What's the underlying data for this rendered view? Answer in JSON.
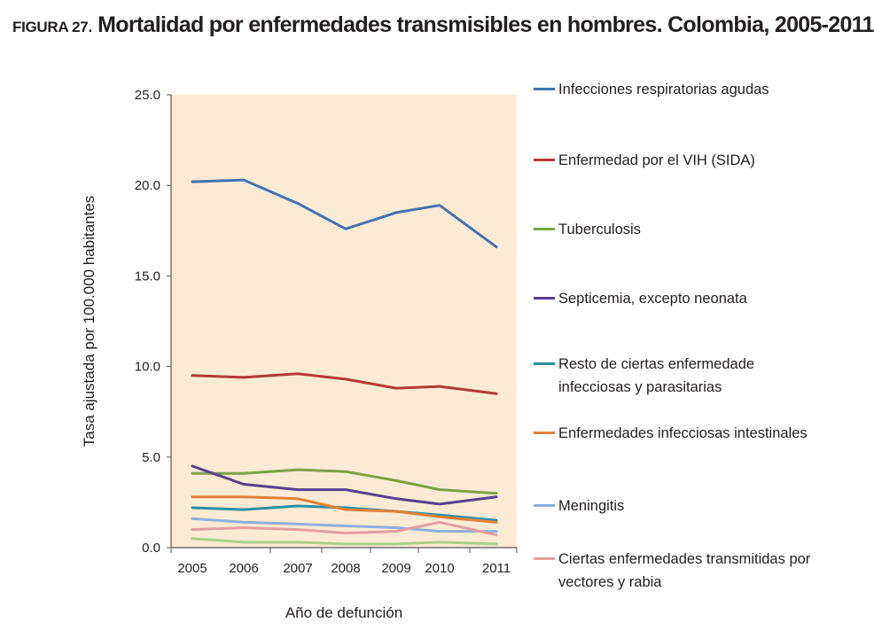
{
  "figure_label": "FIGURA 27.",
  "figure_title": "Mortalidad por enfermedades transmisibles en hombres. Colombia, 2005-2011",
  "chart_data": {
    "type": "line",
    "title": "Mortalidad por enfermedades transmisibles en hombres. Colombia, 2005-2011",
    "xlabel": "Año de defunción",
    "ylabel": "Tasa ajustada por 100.000 habitantes",
    "categories": [
      "2005",
      "2006",
      "2007",
      "2008",
      "2009",
      "2010",
      "2011"
    ],
    "ylim": [
      0,
      25
    ],
    "yticks": [
      "0.0",
      "5.0",
      "10.0",
      "15.0",
      "20.0",
      "25.0"
    ],
    "grid": false,
    "legend_position": "right",
    "plot_background": "#fcebd4",
    "series": [
      {
        "name": "Infecciones respiratorias agudas",
        "color": "#4472b0",
        "values": [
          20.2,
          20.3,
          19.0,
          17.6,
          18.5,
          18.9,
          16.6
        ]
      },
      {
        "name": "Enfermedad por el VIH (SIDA)",
        "color": "#b23a3a",
        "values": [
          9.5,
          9.4,
          9.6,
          9.3,
          8.8,
          8.9,
          8.5
        ]
      },
      {
        "name": "Tuberculosis",
        "color": "#7aa346",
        "values": [
          4.1,
          4.1,
          4.3,
          4.2,
          3.7,
          3.2,
          3.0
        ]
      },
      {
        "name": "Septicemia, excepto neonata",
        "color": "#5b3f8c",
        "values": [
          4.5,
          3.5,
          3.2,
          3.2,
          2.7,
          2.4,
          2.8
        ]
      },
      {
        "name": "Resto de ciertas enfermedade infecciosas y parasitarias",
        "color": "#2a8fa6",
        "values": [
          2.2,
          2.1,
          2.3,
          2.2,
          2.0,
          1.8,
          1.5
        ]
      },
      {
        "name": "Enfermedades infecciosas intestinales",
        "color": "#e0823a",
        "values": [
          2.8,
          2.8,
          2.7,
          2.1,
          2.0,
          1.7,
          1.4
        ]
      },
      {
        "name": "Meningitis",
        "color": "#8cb0dc",
        "values": [
          1.6,
          1.4,
          1.3,
          1.2,
          1.1,
          0.9,
          0.9
        ]
      },
      {
        "name": "Ciertas enfermedades transmitidas por vectores y rabia",
        "color": "#e0a0a0",
        "values": [
          1.0,
          1.1,
          1.0,
          0.8,
          0.9,
          1.4,
          0.7
        ]
      },
      {
        "name": "",
        "color": "#a8d08d",
        "values": [
          0.5,
          0.3,
          0.3,
          0.2,
          0.2,
          0.3,
          0.2
        ]
      }
    ]
  }
}
